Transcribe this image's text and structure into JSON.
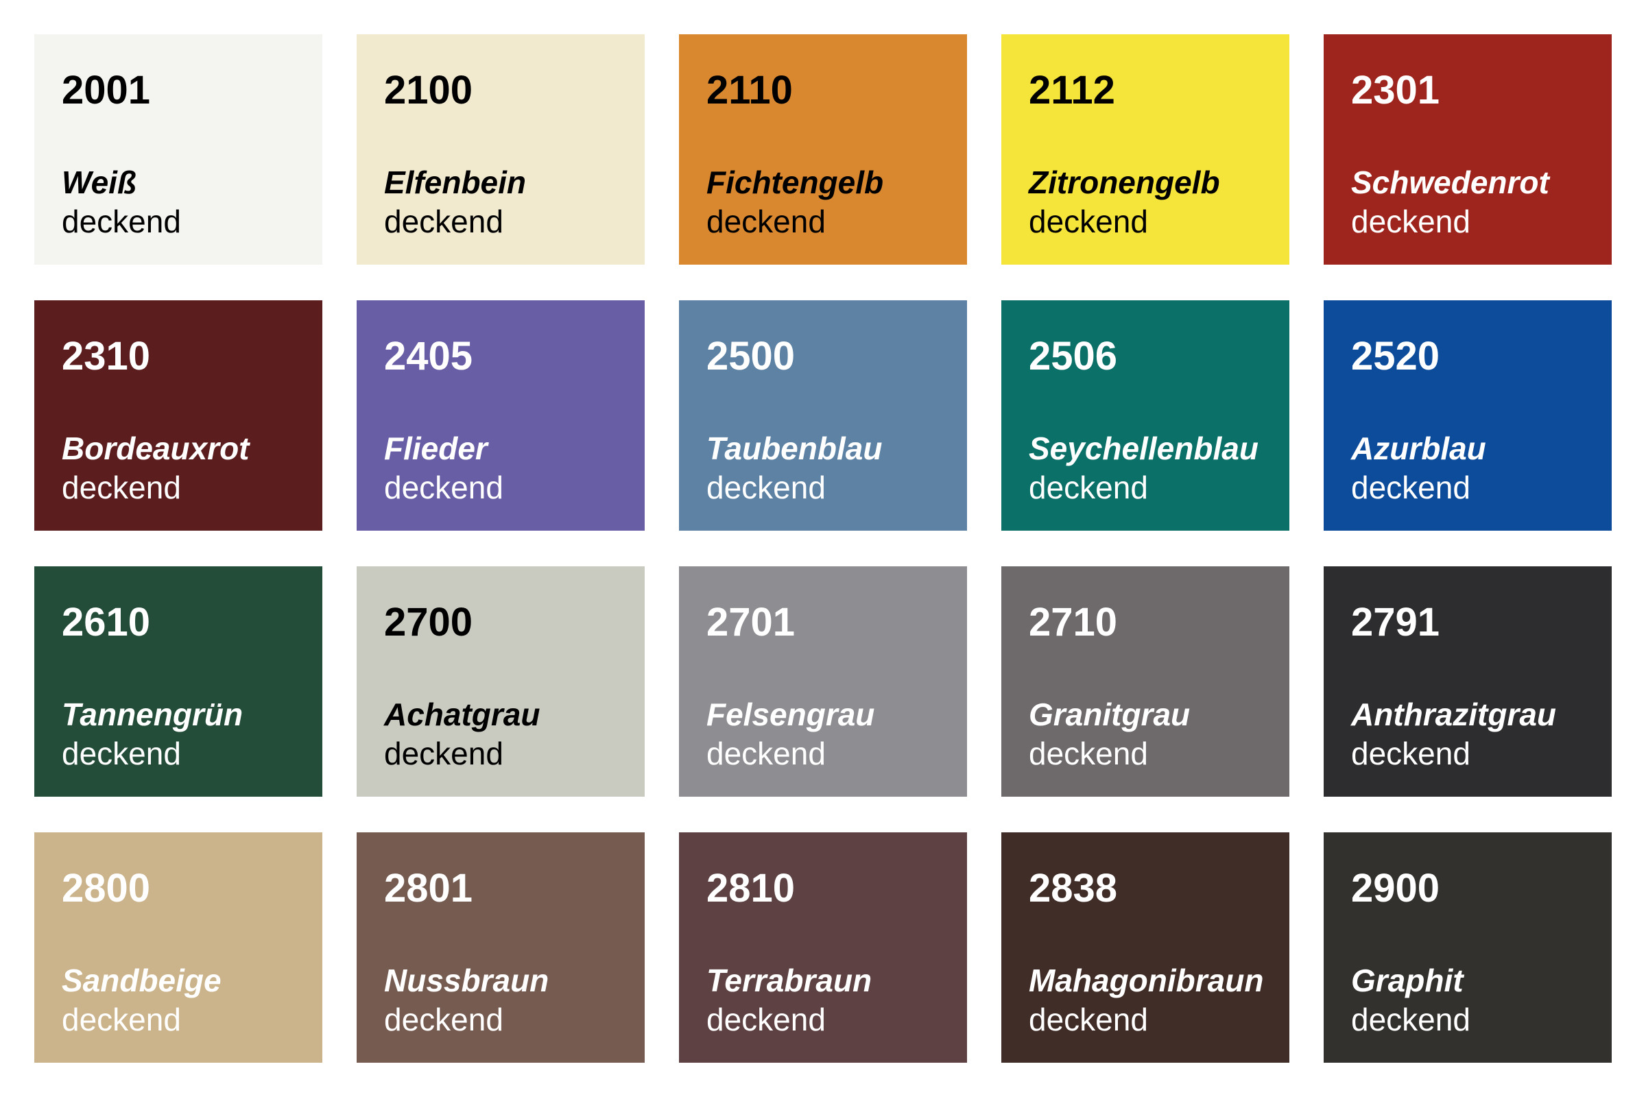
{
  "swatches": [
    {
      "code": "2001",
      "name": "Weiß",
      "finish": "deckend",
      "color": "#f4f4f0",
      "text_color": "#000000"
    },
    {
      "code": "2100",
      "name": "Elfenbein",
      "finish": "deckend",
      "color": "#f1eacf",
      "text_color": "#000000"
    },
    {
      "code": "2110",
      "name": "Fichtengelb",
      "finish": "deckend",
      "color": "#d98830",
      "text_color": "#000000"
    },
    {
      "code": "2112",
      "name": "Zitronengelb",
      "finish": "deckend",
      "color": "#f5e43a",
      "text_color": "#000000"
    },
    {
      "code": "2301",
      "name": "Schwedenrot",
      "finish": "deckend",
      "color": "#9e251e",
      "text_color": "#ffffff"
    },
    {
      "code": "2310",
      "name": "Bordeauxrot",
      "finish": "deckend",
      "color": "#5c1d1e",
      "text_color": "#ffffff"
    },
    {
      "code": "2405",
      "name": "Flieder",
      "finish": "deckend",
      "color": "#685ea5",
      "text_color": "#ffffff"
    },
    {
      "code": "2500",
      "name": "Taubenblau",
      "finish": "deckend",
      "color": "#5d82a4",
      "text_color": "#ffffff"
    },
    {
      "code": "2506",
      "name": "Seychellenblau",
      "finish": "deckend",
      "color": "#0b7068",
      "text_color": "#ffffff"
    },
    {
      "code": "2520",
      "name": "Azurblau",
      "finish": "deckend",
      "color": "#0c4c9b",
      "text_color": "#ffffff"
    },
    {
      "code": "2610",
      "name": "Tannengrün",
      "finish": "deckend",
      "color": "#234d39",
      "text_color": "#ffffff"
    },
    {
      "code": "2700",
      "name": "Achatgrau",
      "finish": "deckend",
      "color": "#c9cac0",
      "text_color": "#000000"
    },
    {
      "code": "2701",
      "name": "Felsengrau",
      "finish": "deckend",
      "color": "#8e8e92",
      "text_color": "#ffffff"
    },
    {
      "code": "2710",
      "name": "Granitgrau",
      "finish": "deckend",
      "color": "#6e6a6c",
      "text_color": "#ffffff"
    },
    {
      "code": "2791",
      "name": "Anthrazitgrau",
      "finish": "deckend",
      "color": "#2d2d2f",
      "text_color": "#ffffff"
    },
    {
      "code": "2800",
      "name": "Sandbeige",
      "finish": "deckend",
      "color": "#cbb48b",
      "text_color": "#ffffff"
    },
    {
      "code": "2801",
      "name": "Nussbraun",
      "finish": "deckend",
      "color": "#765b50",
      "text_color": "#ffffff"
    },
    {
      "code": "2810",
      "name": "Terrabraun",
      "finish": "deckend",
      "color": "#5e4243",
      "text_color": "#ffffff"
    },
    {
      "code": "2838",
      "name": "Mahagonibraun",
      "finish": "deckend",
      "color": "#412d27",
      "text_color": "#ffffff"
    },
    {
      "code": "2900",
      "name": "Graphit",
      "finish": "deckend",
      "color": "#33312d",
      "text_color": "#ffffff"
    }
  ]
}
